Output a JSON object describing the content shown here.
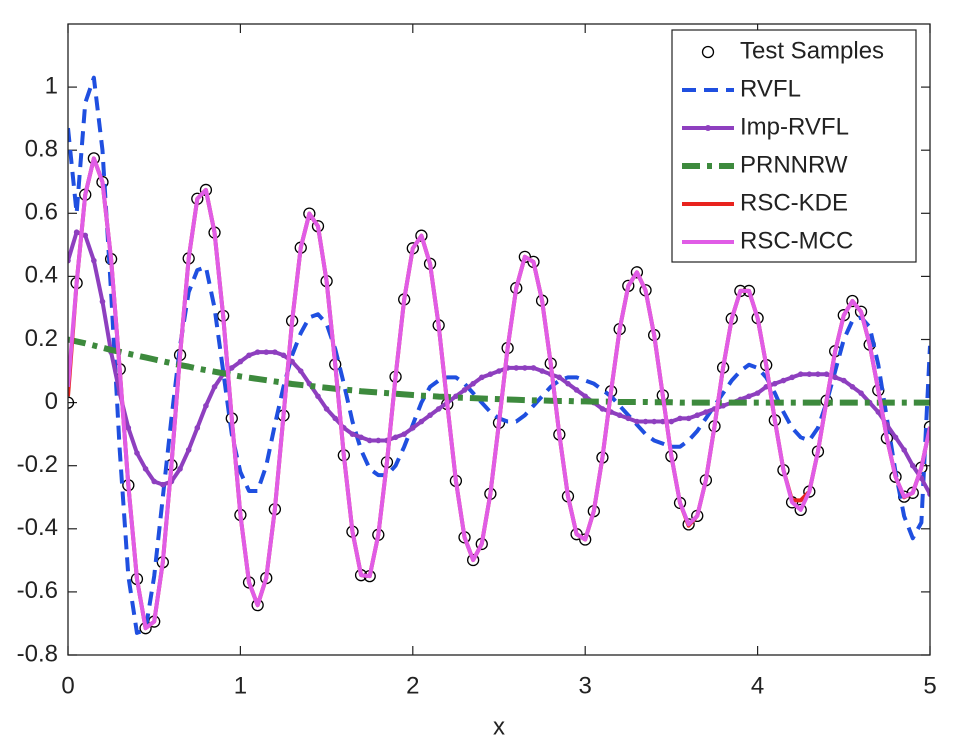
{
  "chart_data": {
    "type": "line",
    "x_label": "x",
    "x": [
      0,
      0.05,
      0.1,
      0.15,
      0.2,
      0.25,
      0.3,
      0.35,
      0.4,
      0.45,
      0.5,
      0.55,
      0.6,
      0.65,
      0.7,
      0.75,
      0.8,
      0.85,
      0.9,
      0.95,
      1,
      1.05,
      1.1,
      1.15,
      1.2,
      1.25,
      1.3,
      1.35,
      1.4,
      1.45,
      1.5,
      1.55,
      1.6,
      1.65,
      1.7,
      1.75,
      1.8,
      1.85,
      1.9,
      1.95,
      2,
      2.05,
      2.1,
      2.15,
      2.2,
      2.25,
      2.3,
      2.35,
      2.4,
      2.45,
      2.5,
      2.55,
      2.6,
      2.65,
      2.7,
      2.75,
      2.8,
      2.85,
      2.9,
      2.95,
      3,
      3.05,
      3.1,
      3.15,
      3.2,
      3.25,
      3.3,
      3.35,
      3.4,
      3.45,
      3.5,
      3.55,
      3.6,
      3.65,
      3.7,
      3.75,
      3.8,
      3.85,
      3.9,
      3.95,
      4,
      4.05,
      4.1,
      4.15,
      4.2,
      4.25,
      4.3,
      4.35,
      4.4,
      4.45,
      4.5,
      4.55,
      4.6,
      4.65,
      4.7,
      4.75,
      4.8,
      4.85,
      4.9,
      4.95,
      5
    ],
    "series": [
      {
        "name": "Test Samples",
        "color": "#000000",
        "line_style": "none",
        "marker": "circle",
        "values": [
          0,
          0.379,
          0.659,
          0.774,
          0.699,
          0.455,
          0.106,
          -0.262,
          -0.559,
          -0.715,
          -0.694,
          -0.506,
          -0.198,
          0.151,
          0.457,
          0.646,
          0.674,
          0.539,
          0.275,
          -0.05,
          -0.356,
          -0.57,
          -0.642,
          -0.556,
          -0.338,
          -0.041,
          0.259,
          0.491,
          0.599,
          0.559,
          0.385,
          0.121,
          -0.167,
          -0.409,
          -0.547,
          -0.55,
          -0.419,
          -0.189,
          0.082,
          0.327,
          0.489,
          0.529,
          0.44,
          0.245,
          -0.005,
          -0.248,
          -0.427,
          -0.499,
          -0.448,
          -0.289,
          -0.064,
          0.173,
          0.363,
          0.462,
          0.446,
          0.323,
          0.124,
          -0.101,
          -0.297,
          -0.417,
          -0.434,
          -0.344,
          -0.174,
          0.036,
          0.233,
          0.37,
          0.413,
          0.356,
          0.214,
          0.023,
          -0.17,
          -0.318,
          -0.386,
          -0.359,
          -0.246,
          -0.075,
          0.111,
          0.266,
          0.354,
          0.354,
          0.268,
          0.119,
          -0.056,
          -0.214,
          -0.316,
          -0.34,
          -0.282,
          -0.155,
          0.006,
          0.163,
          0.277,
          0.322,
          0.288,
          0.184,
          0.039,
          -0.113,
          -0.235,
          -0.298,
          -0.286,
          -0.206,
          -0.077
        ]
      },
      {
        "name": "RVFL",
        "color": "#1f4fe0",
        "line_style": "dashed",
        "marker": "none",
        "values": [
          0.87,
          0.6,
          0.95,
          1.03,
          0.8,
          0.35,
          -0.15,
          -0.55,
          -0.73,
          -0.72,
          -0.55,
          -0.3,
          -0.05,
          0.18,
          0.35,
          0.42,
          0.43,
          0.3,
          0.1,
          -0.1,
          -0.22,
          -0.28,
          -0.28,
          -0.2,
          -0.07,
          0.05,
          0.15,
          0.22,
          0.27,
          0.28,
          0.25,
          0.17,
          0.06,
          -0.06,
          -0.15,
          -0.21,
          -0.23,
          -0.23,
          -0.2,
          -0.14,
          -0.07,
          0,
          0.05,
          0.07,
          0.08,
          0.08,
          0.06,
          0.03,
          0,
          -0.03,
          -0.05,
          -0.06,
          -0.06,
          -0.04,
          -0.01,
          0.02,
          0.05,
          0.07,
          0.08,
          0.08,
          0.07,
          0.06,
          0.04,
          0.02,
          -0.01,
          -0.04,
          -0.07,
          -0.1,
          -0.12,
          -0.13,
          -0.14,
          -0.14,
          -0.12,
          -0.09,
          -0.05,
          -0.01,
          0.03,
          0.07,
          0.1,
          0.12,
          0.11,
          0.08,
          0.03,
          -0.03,
          -0.08,
          -0.11,
          -0.12,
          -0.08,
          0,
          0.1,
          0.2,
          0.26,
          0.27,
          0.24,
          0.12,
          -0.05,
          -0.22,
          -0.36,
          -0.43,
          -0.38,
          0.18
        ]
      },
      {
        "name": "Imp-RVFL",
        "color": "#8e3fbf",
        "line_style": "solid",
        "marker": "dot",
        "values": [
          0.45,
          0.54,
          0.53,
          0.45,
          0.32,
          0.16,
          0.03,
          -0.08,
          -0.16,
          -0.21,
          -0.25,
          -0.26,
          -0.25,
          -0.21,
          -0.15,
          -0.08,
          -0.01,
          0.05,
          0.09,
          0.11,
          0.13,
          0.15,
          0.16,
          0.16,
          0.16,
          0.15,
          0.13,
          0.1,
          0.06,
          0.02,
          -0.02,
          -0.05,
          -0.08,
          -0.1,
          -0.11,
          -0.12,
          -0.12,
          -0.12,
          -0.11,
          -0.1,
          -0.08,
          -0.06,
          -0.04,
          -0.02,
          0,
          0.02,
          0.04,
          0.06,
          0.08,
          0.09,
          0.1,
          0.11,
          0.11,
          0.11,
          0.11,
          0.1,
          0.09,
          0.08,
          0.06,
          0.04,
          0.02,
          0,
          -0.02,
          -0.03,
          -0.04,
          -0.05,
          -0.06,
          -0.06,
          -0.06,
          -0.06,
          -0.06,
          -0.05,
          -0.05,
          -0.04,
          -0.03,
          -0.02,
          -0.01,
          0,
          0.01,
          0.02,
          0.03,
          0.05,
          0.06,
          0.07,
          0.08,
          0.09,
          0.09,
          0.09,
          0.09,
          0.08,
          0.07,
          0.05,
          0.03,
          0,
          -0.03,
          -0.07,
          -0.11,
          -0.15,
          -0.2,
          -0.24,
          -0.29
        ]
      },
      {
        "name": "PRNNRW",
        "color": "#3d8a3d",
        "line_style": "dashdot",
        "marker": "none",
        "values": [
          0.2,
          0.194,
          0.188,
          0.181,
          0.174,
          0.167,
          0.161,
          0.155,
          0.149,
          0.143,
          0.137,
          0.131,
          0.125,
          0.119,
          0.114,
          0.108,
          0.103,
          0.098,
          0.093,
          0.088,
          0.083,
          0.079,
          0.075,
          0.071,
          0.067,
          0.063,
          0.059,
          0.056,
          0.053,
          0.05,
          0.047,
          0.044,
          0.041,
          0.039,
          0.036,
          0.034,
          0.032,
          0.03,
          0.028,
          0.026,
          0.024,
          0.022,
          0.021,
          0.019,
          0.018,
          0.016,
          0.015,
          0.014,
          0.013,
          0.012,
          0.011,
          0.01,
          0.009,
          0.008,
          0.007,
          0.007,
          0.006,
          0.005,
          0.005,
          0.004,
          0.004,
          0.003,
          0.003,
          0.003,
          0.002,
          0.002,
          0.002,
          0.002,
          0.001,
          0.001,
          0.001,
          0,
          0,
          0,
          0,
          0,
          0,
          0,
          0,
          0,
          0,
          0,
          0,
          0,
          0,
          0,
          0,
          0,
          0,
          0,
          0,
          0,
          0,
          0,
          0,
          0,
          0,
          0,
          0,
          0,
          0
        ]
      },
      {
        "name": "RSC-KDE",
        "color": "#e8231e",
        "line_style": "solid",
        "marker": "none",
        "values": [
          0.02,
          0.379,
          0.659,
          0.774,
          0.699,
          0.455,
          0.106,
          -0.262,
          -0.559,
          -0.715,
          -0.694,
          -0.506,
          -0.198,
          0.151,
          0.457,
          0.646,
          0.674,
          0.539,
          0.275,
          -0.05,
          -0.356,
          -0.57,
          -0.642,
          -0.556,
          -0.338,
          -0.041,
          0.259,
          0.491,
          0.599,
          0.559,
          0.385,
          0.121,
          -0.167,
          -0.409,
          -0.547,
          -0.55,
          -0.419,
          -0.189,
          0.082,
          0.327,
          0.489,
          0.529,
          0.44,
          0.245,
          -0.005,
          -0.248,
          -0.427,
          -0.499,
          -0.448,
          -0.289,
          -0.064,
          0.173,
          0.363,
          0.462,
          0.446,
          0.323,
          0.124,
          -0.101,
          -0.297,
          -0.417,
          -0.434,
          -0.344,
          -0.174,
          0.036,
          0.233,
          0.37,
          0.413,
          0.356,
          0.214,
          0.023,
          -0.17,
          -0.318,
          -0.39,
          -0.359,
          -0.246,
          -0.075,
          0.111,
          0.266,
          0.354,
          0.354,
          0.268,
          0.119,
          -0.056,
          -0.214,
          -0.31,
          -0.31,
          -0.282,
          -0.155,
          0.006,
          0.163,
          0.277,
          0.322,
          0.288,
          0.184,
          0.039,
          -0.113,
          -0.235,
          -0.3,
          -0.286,
          -0.206,
          -0.077
        ]
      },
      {
        "name": "RSC-MCC",
        "color": "#e05ce6",
        "line_style": "solid",
        "marker": "none",
        "values": [
          0.05,
          0.379,
          0.659,
          0.774,
          0.699,
          0.455,
          0.106,
          -0.262,
          -0.559,
          -0.715,
          -0.694,
          -0.506,
          -0.198,
          0.151,
          0.457,
          0.646,
          0.674,
          0.539,
          0.275,
          -0.05,
          -0.356,
          -0.57,
          -0.642,
          -0.556,
          -0.338,
          -0.041,
          0.259,
          0.491,
          0.599,
          0.559,
          0.385,
          0.121,
          -0.167,
          -0.409,
          -0.547,
          -0.55,
          -0.419,
          -0.189,
          0.082,
          0.327,
          0.489,
          0.529,
          0.44,
          0.245,
          -0.005,
          -0.248,
          -0.427,
          -0.499,
          -0.448,
          -0.289,
          -0.064,
          0.173,
          0.363,
          0.462,
          0.446,
          0.323,
          0.124,
          -0.101,
          -0.297,
          -0.417,
          -0.434,
          -0.344,
          -0.174,
          0.036,
          0.233,
          0.37,
          0.413,
          0.356,
          0.214,
          0.023,
          -0.17,
          -0.318,
          -0.386,
          -0.359,
          -0.246,
          -0.075,
          0.111,
          0.266,
          0.354,
          0.354,
          0.268,
          0.119,
          -0.056,
          -0.214,
          -0.316,
          -0.34,
          -0.282,
          -0.155,
          0.006,
          0.163,
          0.277,
          0.322,
          0.288,
          0.184,
          0.039,
          -0.113,
          -0.235,
          -0.298,
          -0.286,
          -0.206,
          -0.077
        ]
      }
    ],
    "xlim": [
      0,
      5
    ],
    "xticks": [
      0,
      1,
      2,
      3,
      4,
      5
    ],
    "ylim": [
      -0.8,
      1.2
    ],
    "yticks": [
      -0.8,
      -0.6,
      -0.4,
      -0.2,
      0,
      0.2,
      0.4,
      0.6,
      0.8,
      1
    ],
    "grid": false,
    "legend": "northeast"
  }
}
